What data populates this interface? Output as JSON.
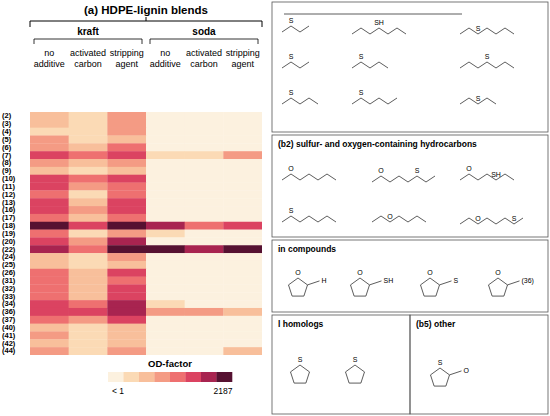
{
  "chart_data": {
    "type": "heatmap",
    "title": "(a) HDPE-lignin blends",
    "groups": [
      "kraft",
      "soda"
    ],
    "columns": [
      "no additive",
      "activated carbon",
      "stripping agent",
      "no additive",
      "activated carbon",
      "stripping agent"
    ],
    "rows": [
      "(2)",
      "(3)",
      "(4)",
      "(5)",
      "(6)",
      "(7)",
      "(8)",
      "(9)",
      "(10)",
      "(11)",
      "(12)",
      "(13)",
      "(16)",
      "(17)",
      "(18)",
      "(19)",
      "(20)",
      "(22)",
      "(24)",
      "(25)",
      "(26)",
      "(31)",
      "(32)",
      "(33)",
      "(34)",
      "(36)",
      "(37)",
      "(40)",
      "(41)",
      "(42)",
      "(44)"
    ],
    "cells": [
      [
        5,
        2,
        15,
        0.5,
        0.5,
        0.5
      ],
      [
        5,
        2,
        15,
        0.5,
        0.5,
        0.5
      ],
      [
        2,
        2,
        15,
        0.5,
        0.5,
        0.5
      ],
      [
        15,
        2,
        5,
        0.5,
        0.5,
        0.5
      ],
      [
        15,
        5,
        50,
        0.5,
        0.5,
        0.5
      ],
      [
        150,
        50,
        150,
        2,
        2,
        15
      ],
      [
        15,
        5,
        15,
        0.5,
        0.5,
        0.5
      ],
      [
        5,
        2,
        5,
        0.5,
        0.5,
        0.5
      ],
      [
        150,
        50,
        150,
        0.5,
        0.5,
        0.5
      ],
      [
        150,
        15,
        50,
        0.5,
        0.5,
        0.5
      ],
      [
        50,
        2,
        50,
        0.5,
        0.5,
        0.5
      ],
      [
        150,
        5,
        150,
        0.5,
        0.5,
        0.5
      ],
      [
        150,
        15,
        150,
        0.5,
        0.5,
        0.5
      ],
      [
        50,
        5,
        50,
        0.5,
        0.5,
        0.5
      ],
      [
        1500,
        150,
        1500,
        450,
        50,
        150
      ],
      [
        50,
        2,
        15,
        2,
        0.5,
        0.5
      ],
      [
        150,
        15,
        450,
        0.5,
        0.5,
        0.5
      ],
      [
        450,
        50,
        1500,
        1500,
        450,
        1500
      ],
      [
        5,
        2,
        15,
        0.5,
        0.5,
        0.5
      ],
      [
        5,
        2,
        5,
        0.5,
        0.5,
        0.5
      ],
      [
        50,
        5,
        150,
        0.5,
        0.5,
        0.5
      ],
      [
        50,
        5,
        50,
        0.5,
        0.5,
        0.5
      ],
      [
        50,
        5,
        150,
        0.5,
        0.5,
        0.5
      ],
      [
        50,
        5,
        150,
        0.5,
        0.5,
        0.5
      ],
      [
        150,
        50,
        450,
        2,
        0.5,
        0.5
      ],
      [
        150,
        150,
        450,
        15,
        15,
        5
      ],
      [
        50,
        15,
        150,
        0.5,
        0.5,
        0.5
      ],
      [
        5,
        2,
        5,
        0.5,
        0.5,
        0.5
      ],
      [
        15,
        2,
        5,
        0.5,
        0.5,
        0.5
      ],
      [
        5,
        2,
        5,
        0.5,
        0.5,
        0.5
      ],
      [
        15,
        2,
        15,
        0.5,
        0.5,
        5
      ]
    ],
    "colorbar": {
      "title": "OD-factor",
      "range": [
        1,
        2187
      ],
      "ticks": [
        {
          "value": 1,
          "label": "< 1"
        },
        2187
      ],
      "colors": [
        "#fcf1df",
        "#fbdab5",
        "#f8bf9b",
        "#f49b84",
        "#ee7070",
        "#db4361",
        "#a82450",
        "#561131"
      ]
    }
  },
  "panels": [
    {
      "structures": [
        {
          "atoms": [
            "S"
          ]
        },
        {
          "atoms": [
            "SH"
          ]
        },
        {
          "atoms": [
            "S"
          ]
        },
        {
          "atoms": [
            "S"
          ]
        },
        {
          "atoms": [
            "S"
          ]
        },
        {
          "atoms": [
            "S"
          ]
        },
        {
          "atoms": [
            "S"
          ]
        },
        {
          "atoms": [
            "S"
          ]
        },
        {
          "atoms": [
            "S"
          ]
        }
      ]
    },
    {
      "title": "(b2) sulfur- and oxygen-containing hydrocarbons",
      "structures": [
        {
          "atoms": [
            "O"
          ]
        },
        {
          "atoms": [
            "O",
            "S"
          ]
        },
        {
          "atoms": [
            "O",
            "SH"
          ]
        },
        {
          "atoms": [
            "S"
          ]
        },
        {
          "atoms": [
            "O"
          ]
        },
        {
          "atoms": [
            "O",
            "S"
          ]
        }
      ]
    },
    {
      "title": "in compounds",
      "structures": [
        {
          "atoms": [
            "O",
            "H"
          ]
        },
        {
          "atoms": [
            "O",
            "SH"
          ]
        },
        {
          "atoms": [
            "O",
            "S"
          ]
        },
        {
          "atoms": [
            "O",
            "(36)"
          ]
        }
      ]
    },
    {
      "title": "l homologs",
      "structures": [
        {
          "atoms": [
            "S"
          ]
        },
        {
          "atoms": [
            "S"
          ]
        }
      ]
    },
    {
      "title": "(b5) other",
      "structures": [
        {
          "atoms": [
            "S",
            "O"
          ]
        }
      ]
    }
  ]
}
